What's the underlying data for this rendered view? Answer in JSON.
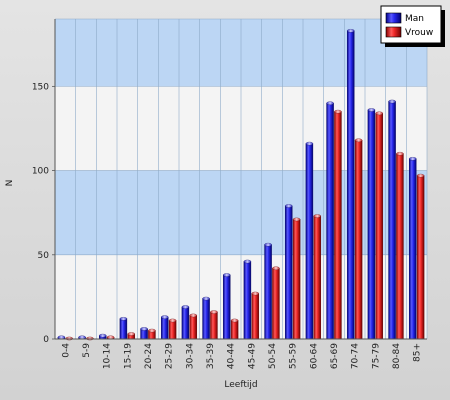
{
  "chart_data": {
    "type": "bar",
    "xlabel": "Leeftijd",
    "ylabel": "N",
    "ylim": [
      0,
      190
    ],
    "yticks": [
      0,
      50,
      100,
      150
    ],
    "grid": true,
    "legend_position": "top-right",
    "categories": [
      "0-4",
      "5-9",
      "10-14",
      "15-19",
      "20-24",
      "25-29",
      "30-34",
      "35-39",
      "40-44",
      "45-49",
      "50-54",
      "55-59",
      "60-64",
      "65-69",
      "70-74",
      "75-79",
      "80-84",
      "85+"
    ],
    "series": [
      {
        "name": "Man",
        "color": "#1a1aee",
        "values": [
          1,
          1,
          2,
          12,
          6,
          13,
          19,
          24,
          38,
          46,
          56,
          79,
          116,
          140,
          183,
          136,
          141,
          107
        ]
      },
      {
        "name": "Vrouw",
        "color": "#ee1a1a",
        "values": [
          0,
          0,
          1,
          3,
          5,
          11,
          14,
          16,
          11,
          27,
          42,
          71,
          73,
          135,
          118,
          134,
          110,
          97
        ]
      }
    ]
  }
}
